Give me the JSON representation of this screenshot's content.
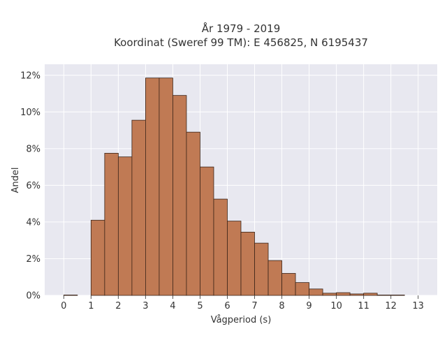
{
  "chart_data": {
    "type": "bar",
    "title_line1": "År 1979 - 2019",
    "title_line2": "Koordinat (Sweref 99 TM): E 456825, N 6195437",
    "xlabel": "Vågperiod (s)",
    "ylabel": "Andel",
    "x_ticks": [
      "0",
      "1",
      "2",
      "3",
      "4",
      "5",
      "6",
      "7",
      "8",
      "9",
      "10",
      "11",
      "12",
      "13"
    ],
    "y_ticks": [
      "0%",
      "2%",
      "4%",
      "6%",
      "8%",
      "10%",
      "12%"
    ],
    "xlim": [
      -0.7,
      13.7
    ],
    "ylim": [
      0,
      12.6
    ],
    "bin_width": 0.5,
    "bins": [
      {
        "x0": 0.0,
        "value": 0.02
      },
      {
        "x0": 1.0,
        "value": 4.1
      },
      {
        "x0": 1.5,
        "value": 7.75
      },
      {
        "x0": 2.0,
        "value": 7.55
      },
      {
        "x0": 2.5,
        "value": 9.55
      },
      {
        "x0": 3.0,
        "value": 11.85
      },
      {
        "x0": 3.5,
        "value": 11.85
      },
      {
        "x0": 4.0,
        "value": 10.9
      },
      {
        "x0": 4.5,
        "value": 8.9
      },
      {
        "x0": 5.0,
        "value": 7.0
      },
      {
        "x0": 5.5,
        "value": 5.25
      },
      {
        "x0": 6.0,
        "value": 4.05
      },
      {
        "x0": 6.5,
        "value": 3.45
      },
      {
        "x0": 7.0,
        "value": 2.85
      },
      {
        "x0": 7.5,
        "value": 1.9
      },
      {
        "x0": 8.0,
        "value": 1.2
      },
      {
        "x0": 8.5,
        "value": 0.7
      },
      {
        "x0": 9.0,
        "value": 0.35
      },
      {
        "x0": 9.5,
        "value": 0.12
      },
      {
        "x0": 10.0,
        "value": 0.15
      },
      {
        "x0": 10.5,
        "value": 0.08
      },
      {
        "x0": 11.0,
        "value": 0.12
      },
      {
        "x0": 11.5,
        "value": 0.02
      },
      {
        "x0": 12.0,
        "value": 0.02
      }
    ],
    "grid": true,
    "colors": {
      "bar_fill": "#c07a54",
      "bar_stroke": "#3a2418",
      "plot_background": "#e8e8f0",
      "grid": "#ffffff"
    }
  }
}
